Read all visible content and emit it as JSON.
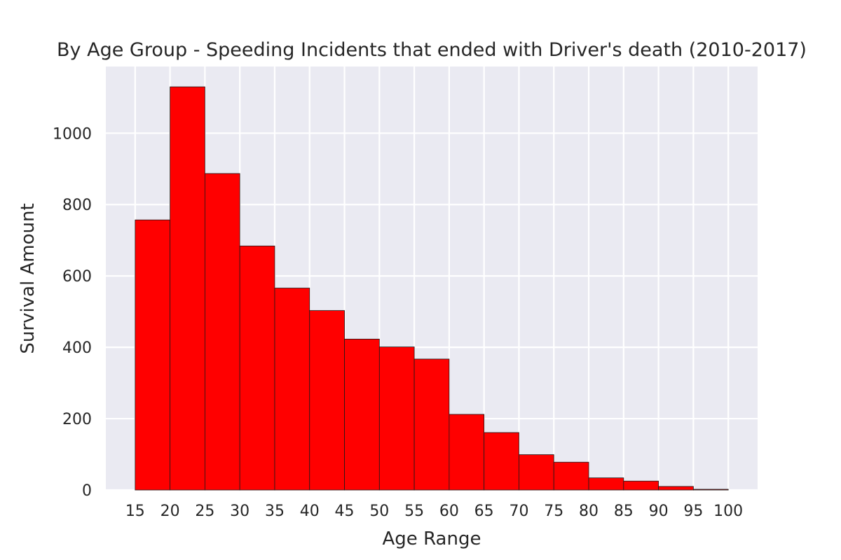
{
  "chart_data": {
    "type": "bar",
    "title": "By Age Group - Speeding Incidents that ended with Driver's death (2010-2017)",
    "xlabel": "Age Range",
    "ylabel": "Survival Amount",
    "bin_edges": [
      15,
      20,
      25,
      30,
      35,
      40,
      45,
      50,
      55,
      60,
      65,
      70,
      75,
      80,
      85,
      90,
      95,
      100
    ],
    "values": [
      757,
      1130,
      887,
      684,
      566,
      503,
      423,
      401,
      367,
      212,
      161,
      99,
      78,
      34,
      25,
      10,
      2
    ],
    "xlim": [
      10.8,
      104.2
    ],
    "ylim": [
      0,
      1187
    ],
    "x_ticks": [
      15,
      20,
      25,
      30,
      35,
      40,
      45,
      50,
      55,
      60,
      65,
      70,
      75,
      80,
      85,
      90,
      95,
      100
    ],
    "y_ticks": [
      0,
      200,
      400,
      600,
      800,
      1000
    ],
    "grid": true,
    "colors": {
      "bar_fill": "#ff0000",
      "bar_edge": "#1a1a1a",
      "plot_background": "#eaeaf2",
      "grid": "#ffffff",
      "text": "#262626"
    }
  }
}
